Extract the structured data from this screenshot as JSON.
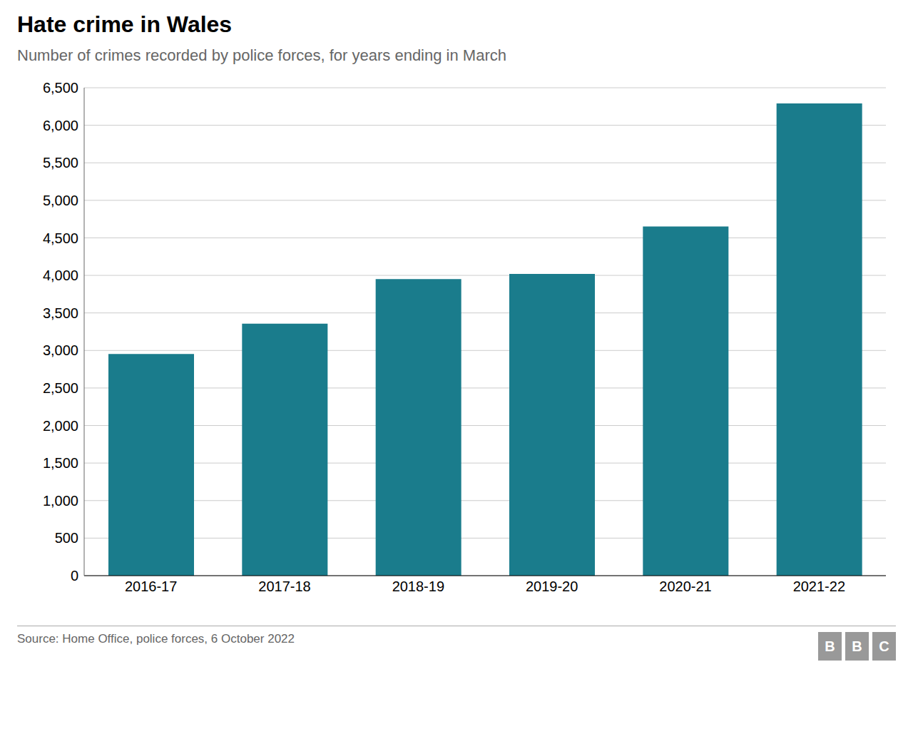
{
  "chart_data": {
    "type": "bar",
    "title": "Hate crime in Wales",
    "subtitle": "Number of crimes recorded by police forces, for years ending in March",
    "categories": [
      "2016-17",
      "2017-18",
      "2018-19",
      "2019-20",
      "2020-21",
      "2021-22"
    ],
    "values": [
      2953,
      3356,
      3951,
      4019,
      4651,
      6290
    ],
    "color": "#1a7c8c",
    "ylim": [
      0,
      6500
    ],
    "yticks": [
      0,
      500,
      {
        "value": 1000,
        "label": "1,000"
      },
      {
        "value": 1500,
        "label": "1,500"
      },
      {
        "value": 2000,
        "label": "2,000"
      },
      {
        "value": 2500,
        "label": "2,500"
      },
      {
        "value": 3000,
        "label": "3,000"
      },
      {
        "value": 3500,
        "label": "3,500"
      },
      {
        "value": 4000,
        "label": "4,000"
      },
      {
        "value": 4500,
        "label": "4,500"
      },
      {
        "value": 5000,
        "label": "5,000"
      },
      {
        "value": 5500,
        "label": "5,500"
      },
      {
        "value": 6000,
        "label": "6,000"
      },
      {
        "value": 6500,
        "label": "6,500"
      }
    ],
    "grid": true,
    "annotations": [
      "Source: Home Office, police forces, 6 October 2022",
      "BBC"
    ]
  }
}
